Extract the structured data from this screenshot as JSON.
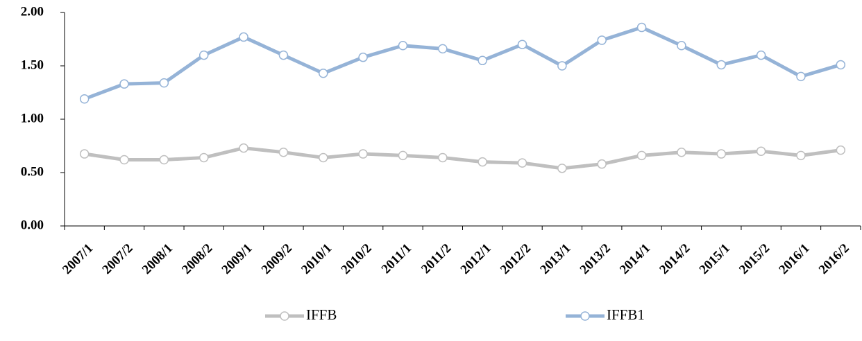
{
  "chart_data": {
    "type": "line",
    "categories": [
      "2007/1",
      "2007/2",
      "2008/1",
      "2008/2",
      "2009/1",
      "2009/2",
      "2010/1",
      "2010/2",
      "2011/1",
      "2011/2",
      "2012/1",
      "2012/2",
      "2013/1",
      "2013/2",
      "2014/1",
      "2014/2",
      "2015/1",
      "2015/2",
      "2016/1",
      "2016/2"
    ],
    "series": [
      {
        "name": "IFFB",
        "color": "#bfbfbf",
        "values": [
          0.675,
          0.62,
          0.62,
          0.64,
          0.73,
          0.69,
          0.64,
          0.675,
          0.66,
          0.64,
          0.6,
          0.59,
          0.54,
          0.58,
          0.66,
          0.69,
          0.675,
          0.7,
          0.66,
          0.71
        ]
      },
      {
        "name": "IFFB1",
        "color": "#95b3d7",
        "values": [
          1.19,
          1.33,
          1.34,
          1.6,
          1.77,
          1.6,
          1.43,
          1.58,
          1.69,
          1.66,
          1.55,
          1.7,
          1.5,
          1.74,
          1.86,
          1.69,
          1.51,
          1.6,
          1.4,
          1.51
        ]
      }
    ],
    "ylim": [
      0,
      2
    ],
    "yticks": [
      {
        "value": 0,
        "label": "0.00"
      },
      {
        "value": 0.5,
        "label": "0.50"
      },
      {
        "value": 1,
        "label": "1.00"
      },
      {
        "value": 1.5,
        "label": "1.50"
      },
      {
        "value": 2,
        "label": "2.00"
      }
    ],
    "grid": false,
    "legend": "bottom"
  }
}
